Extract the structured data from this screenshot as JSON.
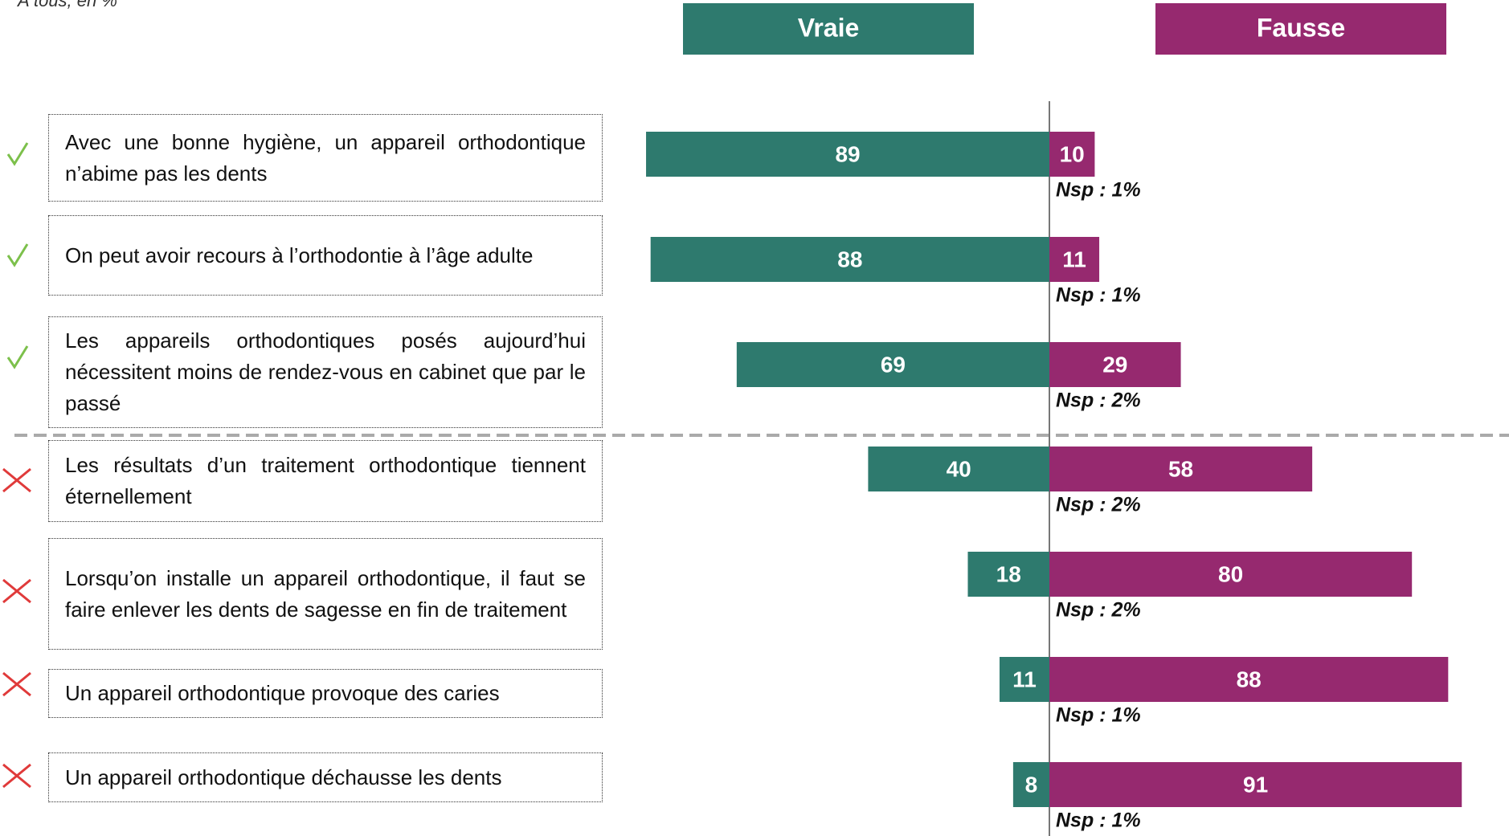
{
  "chart_data": {
    "type": "diverging-bar",
    "subtitle": "A tous, en %",
    "categories": [
      "Avec une bonne hygiène, un appareil orthodontique n’abime pas les dents",
      "On peut avoir recours à l’orthodontie à l’âge adulte",
      "Les appareils orthodontiques posés aujourd’hui nécessitent moins de rendez-vous en cabinet que par le passé",
      "Les résultats d’un traitement orthodontique tiennent éternellement",
      "Lorsqu’on installe un appareil orthodontique, il faut se faire enlever les dents de sagesse en fin de traitement",
      "Un appareil orthodontique provoque des caries",
      "Un appareil orthodontique déchausse les dents"
    ],
    "series": [
      {
        "name": "Vraie",
        "color": "#2e7a6e",
        "values": [
          89,
          88,
          69,
          40,
          18,
          11,
          8
        ]
      },
      {
        "name": "Fausse",
        "color": "#96296f",
        "values": [
          10,
          11,
          29,
          58,
          80,
          88,
          91
        ]
      }
    ],
    "nsp": {
      "values": [
        1,
        1,
        2,
        2,
        2,
        1,
        1
      ],
      "value_labels": [
        "Nsp : 1%",
        "Nsp : 1%",
        "Nsp : 2%",
        "Nsp : 2%",
        "Nsp : 2%",
        "Nsp : 1%",
        "Nsp : 1%"
      ]
    }
  }
}
